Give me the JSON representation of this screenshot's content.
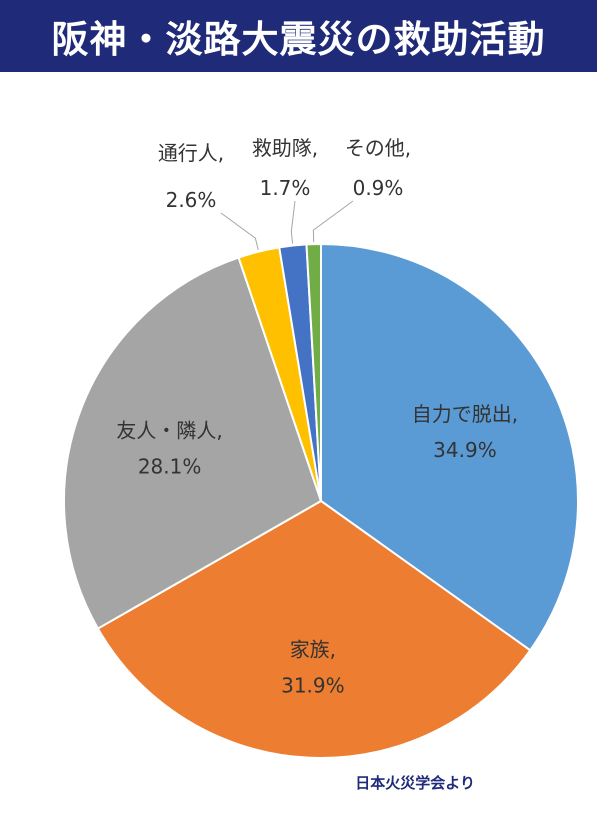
{
  "title": "阪神・淡路大震災の救助活動",
  "source": "日本火災学会より",
  "chart_data": {
    "type": "pie",
    "title": "",
    "slices": [
      {
        "label": "自力で脱出,",
        "value": 34.9,
        "value_text": "34.9%",
        "color": "#5b9bd5"
      },
      {
        "label": "家族,",
        "value": 31.9,
        "value_text": "31.9%",
        "color": "#ed7d31"
      },
      {
        "label": "友人・隣人,",
        "value": 28.1,
        "value_text": "28.1%",
        "color": "#a5a5a5"
      },
      {
        "label": "通行人,",
        "value": 2.6,
        "value_text": "2.6%",
        "color": "#ffc000"
      },
      {
        "label": "救助隊,",
        "value": 1.7,
        "value_text": "1.7%",
        "color": "#4472c4"
      },
      {
        "label": "その他,",
        "value": 0.9,
        "value_text": "0.9%",
        "color": "#70ad47"
      }
    ],
    "start_angle": "12 o'clock",
    "direction": "clockwise",
    "legend": "none"
  }
}
